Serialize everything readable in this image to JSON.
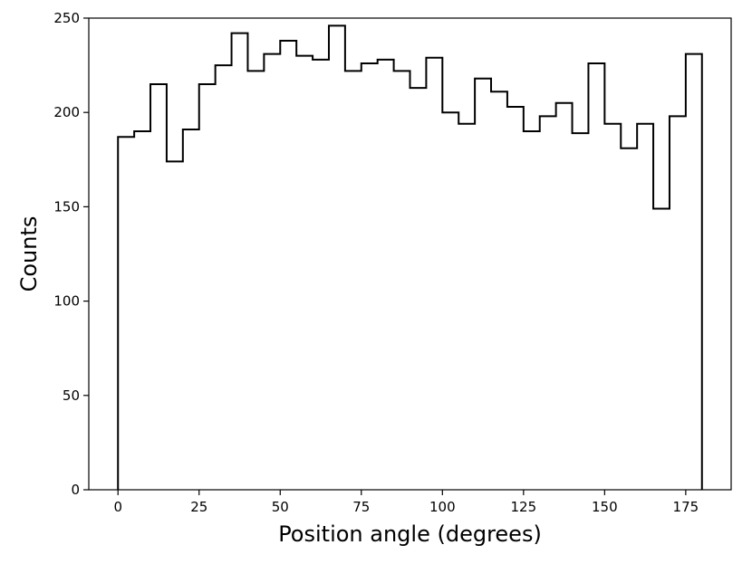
{
  "chart_data": {
    "type": "histogram",
    "title": "",
    "xlabel": "Position angle (degrees)",
    "ylabel": "Counts",
    "xlim": [
      -9,
      189
    ],
    "ylim": [
      0,
      250
    ],
    "xticks": [
      0,
      25,
      50,
      75,
      100,
      125,
      150,
      175
    ],
    "yticks": [
      0,
      50,
      100,
      150,
      200,
      250
    ],
    "bin_edges": [
      0,
      5,
      10,
      15,
      20,
      25,
      30,
      35,
      40,
      45,
      50,
      55,
      60,
      65,
      70,
      75,
      80,
      85,
      90,
      95,
      100,
      105,
      110,
      115,
      120,
      125,
      130,
      135,
      140,
      145,
      150,
      155,
      160,
      165,
      170,
      175,
      180
    ],
    "counts": [
      187,
      190,
      215,
      174,
      191,
      215,
      225,
      242,
      222,
      231,
      238,
      230,
      228,
      246,
      222,
      226,
      228,
      222,
      213,
      229,
      200,
      194,
      218,
      211,
      203,
      190,
      198,
      205,
      189,
      226,
      194,
      181,
      194,
      149,
      198,
      231
    ],
    "histtype": "step",
    "line_color": "#000000",
    "grid": false,
    "legend": "none"
  }
}
